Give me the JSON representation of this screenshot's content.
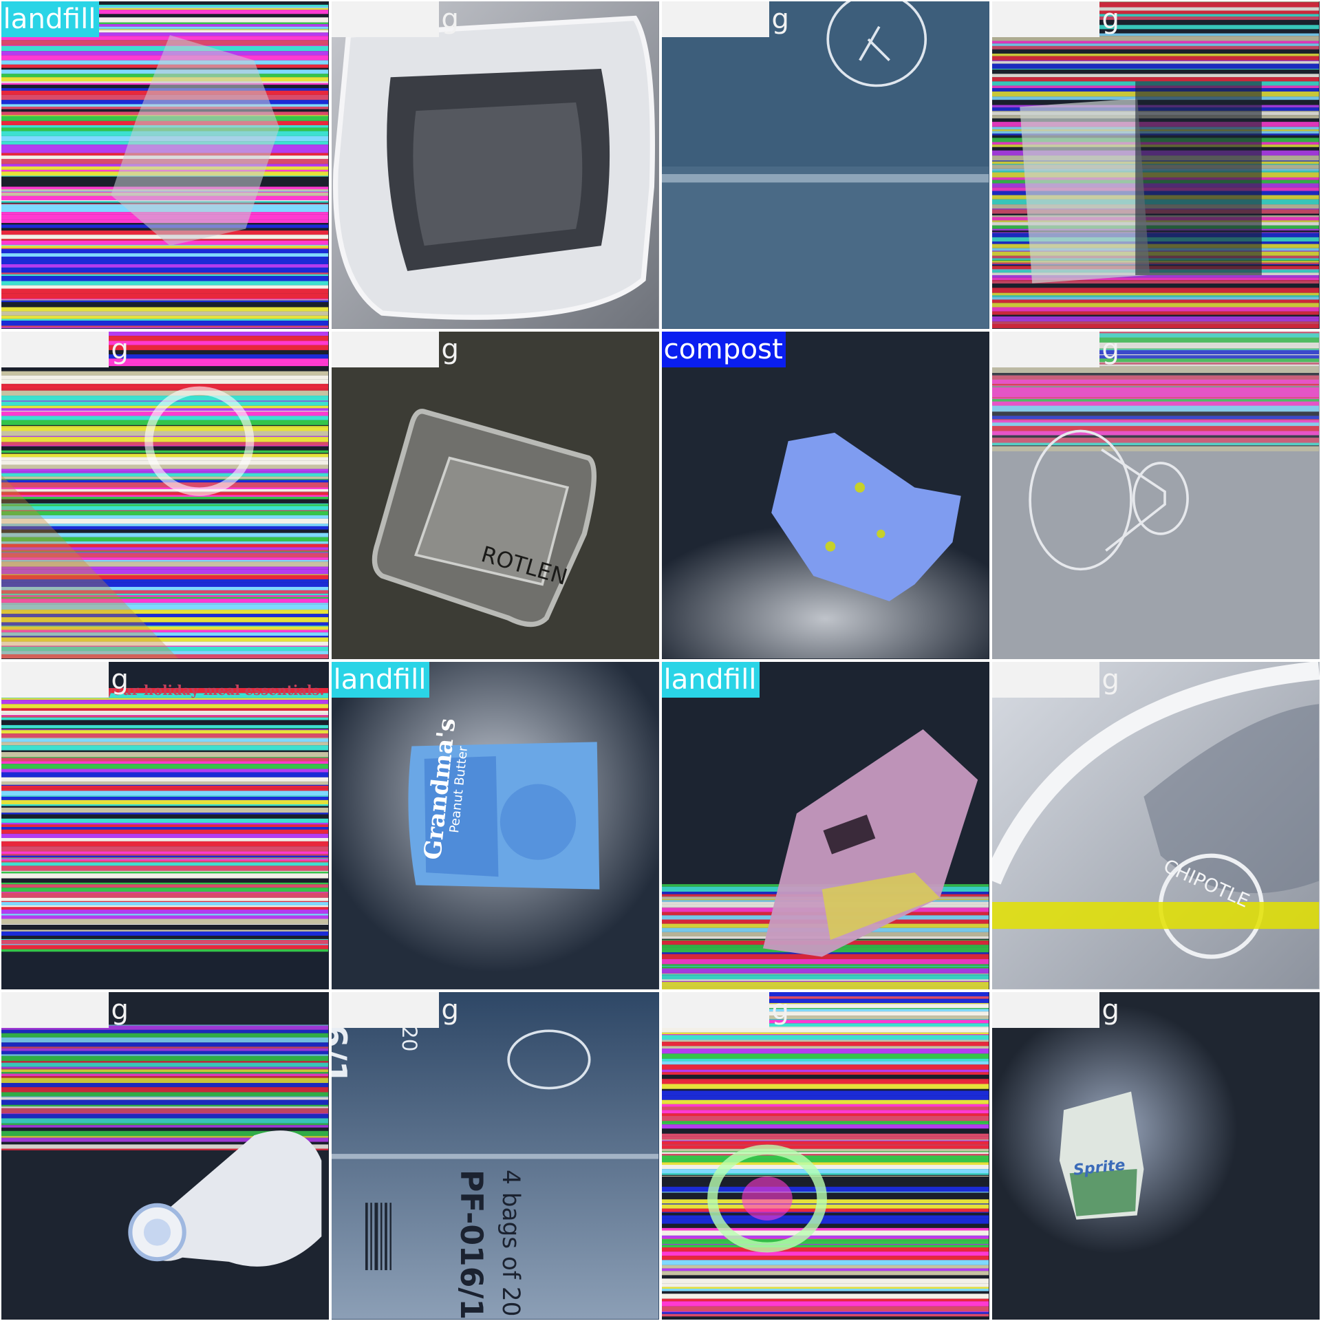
{
  "tiles": [
    {
      "label": "landfill",
      "category": "landfill",
      "subject": "glitched-bottle"
    },
    {
      "label": "recycling",
      "category": "recycling",
      "subject": "foil-tray"
    },
    {
      "label": "recycling",
      "category": "recycling",
      "subject": "cardboard-marked"
    },
    {
      "label": "recycling",
      "category": "recycling",
      "subject": "glitched-package"
    },
    {
      "label": "recycling",
      "category": "recycling",
      "subject": "glitched-logo"
    },
    {
      "label": "recycling",
      "category": "recycling",
      "subject": "plastic-clamshell"
    },
    {
      "label": "compost",
      "category": "compost",
      "subject": "food-scrap"
    },
    {
      "label": "recycling",
      "category": "recycling",
      "subject": "plastic-cup"
    },
    {
      "label": "recycling",
      "category": "recycling",
      "subject": "glitched-flyer"
    },
    {
      "label": "landfill",
      "category": "landfill",
      "subject": "snack-bag"
    },
    {
      "label": "landfill",
      "category": "landfill",
      "subject": "wrapper"
    },
    {
      "label": "recycling",
      "category": "recycling",
      "subject": "foil-lid"
    },
    {
      "label": "recycling",
      "category": "recycling",
      "subject": "bottle"
    },
    {
      "label": "recycling",
      "category": "recycling",
      "subject": "box-print"
    },
    {
      "label": "recycling",
      "category": "recycling",
      "subject": "glitched-can"
    },
    {
      "label": "recycling",
      "category": "recycling",
      "subject": "crushed-can"
    }
  ],
  "printed_text": {
    "clamshell_brand": "ROTLEN",
    "flyer_headline": "and save on your holiday meal essentials.",
    "snack_brand": "Grandma's",
    "snack_flavor": "Peanut Butter",
    "foil_stamp": "CHIPOTLE",
    "box_date": "6/1",
    "box_count": "20",
    "box_qty": "4 bags of 20",
    "box_code": "PF-016/1",
    "can_brand": "Sprite"
  },
  "colors": {
    "landfill": "#2ad4e6",
    "recycling": "#f2f2f2",
    "compost": "#0a1ef0"
  }
}
